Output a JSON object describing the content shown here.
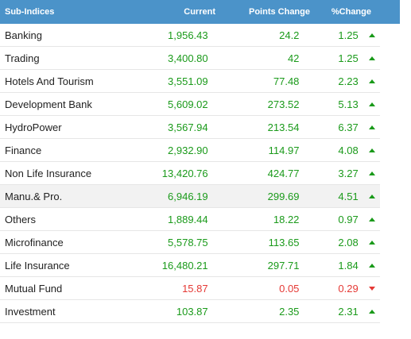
{
  "header": {
    "name": "Sub-Indices",
    "current": "Current",
    "points": "Points Change",
    "percent": "%Change"
  },
  "rows": [
    {
      "name": "Banking",
      "current": "1,956.43",
      "points": "24.2",
      "percent": "1.25",
      "direction": "up"
    },
    {
      "name": "Trading",
      "current": "3,400.80",
      "points": "42",
      "percent": "1.25",
      "direction": "up"
    },
    {
      "name": "Hotels And Tourism",
      "current": "3,551.09",
      "points": "77.48",
      "percent": "2.23",
      "direction": "up"
    },
    {
      "name": "Development Bank",
      "current": "5,609.02",
      "points": "273.52",
      "percent": "5.13",
      "direction": "up"
    },
    {
      "name": "HydroPower",
      "current": "3,567.94",
      "points": "213.54",
      "percent": "6.37",
      "direction": "up"
    },
    {
      "name": "Finance",
      "current": "2,932.90",
      "points": "114.97",
      "percent": "4.08",
      "direction": "up"
    },
    {
      "name": "Non Life Insurance",
      "current": "13,420.76",
      "points": "424.77",
      "percent": "3.27",
      "direction": "up"
    },
    {
      "name": "Manu.& Pro.",
      "current": "6,946.19",
      "points": "299.69",
      "percent": "4.51",
      "direction": "up"
    },
    {
      "name": "Others",
      "current": "1,889.44",
      "points": "18.22",
      "percent": "0.97",
      "direction": "up"
    },
    {
      "name": "Microfinance",
      "current": "5,578.75",
      "points": "113.65",
      "percent": "2.08",
      "direction": "up"
    },
    {
      "name": "Life Insurance",
      "current": "16,480.21",
      "points": "297.71",
      "percent": "1.84",
      "direction": "up"
    },
    {
      "name": "Mutual Fund",
      "current": "15.87",
      "points": "0.05",
      "percent": "0.29",
      "direction": "down"
    },
    {
      "name": "Investment",
      "current": "103.87",
      "points": "2.35",
      "percent": "2.31",
      "direction": "up"
    }
  ],
  "colors": {
    "header_bg": "#4b93c9",
    "up": "#1a9a1a",
    "down": "#e53935",
    "highlight_row_bg": "#f2f2f2"
  },
  "highlighted_row_index": 7
}
